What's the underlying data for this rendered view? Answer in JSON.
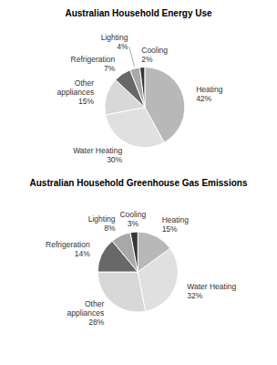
{
  "chart_data": [
    {
      "type": "pie",
      "title": "Australian Household Energy Use",
      "categories": [
        "Heating",
        "Water Heating",
        "Other\nappliances",
        "Refrigeration",
        "Lighting",
        "Cooling"
      ],
      "values": [
        42,
        30,
        15,
        7,
        4,
        2
      ],
      "value_labels": [
        "42%",
        "30%",
        "15%",
        "7%",
        "4%",
        "2%"
      ],
      "colors": [
        "#b8b8b8",
        "#e0e0e0",
        "#d8d8d8",
        "#686868",
        "#a8a8a8",
        "#383838"
      ],
      "data_labels": true
    },
    {
      "type": "pie",
      "title": "Australian Household Greenhouse Gas Emissions",
      "categories": [
        "Heating",
        "Water Heating",
        "Other\nappliances",
        "Refrigeration",
        "Lighting",
        "Cooling"
      ],
      "values": [
        15,
        32,
        28,
        14,
        8,
        3
      ],
      "value_labels": [
        "15%",
        "32%",
        "28%",
        "14%",
        "8%",
        "3%"
      ],
      "colors": [
        "#b8b8b8",
        "#e0e0e0",
        "#d8d8d8",
        "#686868",
        "#a8a8a8",
        "#383838"
      ],
      "data_labels": true
    }
  ]
}
